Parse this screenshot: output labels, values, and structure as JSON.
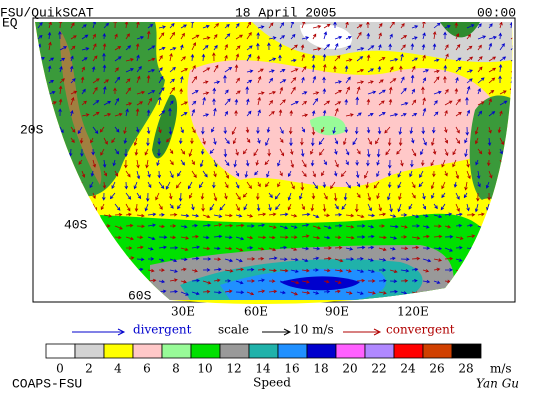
{
  "header": {
    "left": "FSU/QuikSCAT",
    "date": "18 April 2005",
    "time": "00:00"
  },
  "latitude_labels": [
    "EQ",
    "20S",
    "40S",
    "60S"
  ],
  "longitude_labels": [
    "30E",
    "60E",
    "90E",
    "120E"
  ],
  "legend": {
    "divergent": "divergent",
    "scale": "scale",
    "scale_value": "10 m/s",
    "convergent": "convergent"
  },
  "colorbar": {
    "labels": [
      0,
      2,
      4,
      6,
      8,
      10,
      12,
      14,
      16,
      18,
      20,
      22,
      24,
      26,
      28
    ],
    "unit": "m/s",
    "title": "Speed",
    "colors": [
      "#ffffff",
      "#d3d3d3",
      "#ffff00",
      "#ffc8c8",
      "#98fb98",
      "#00e000",
      "#999999",
      "#20b2aa",
      "#2090ff",
      "#0000cd",
      "#ff60ff",
      "#b088ff",
      "#ff0000",
      "#d04000",
      "#000000"
    ]
  },
  "footer": {
    "left": "COAPS-FSU",
    "right": "Yan Gu"
  }
}
